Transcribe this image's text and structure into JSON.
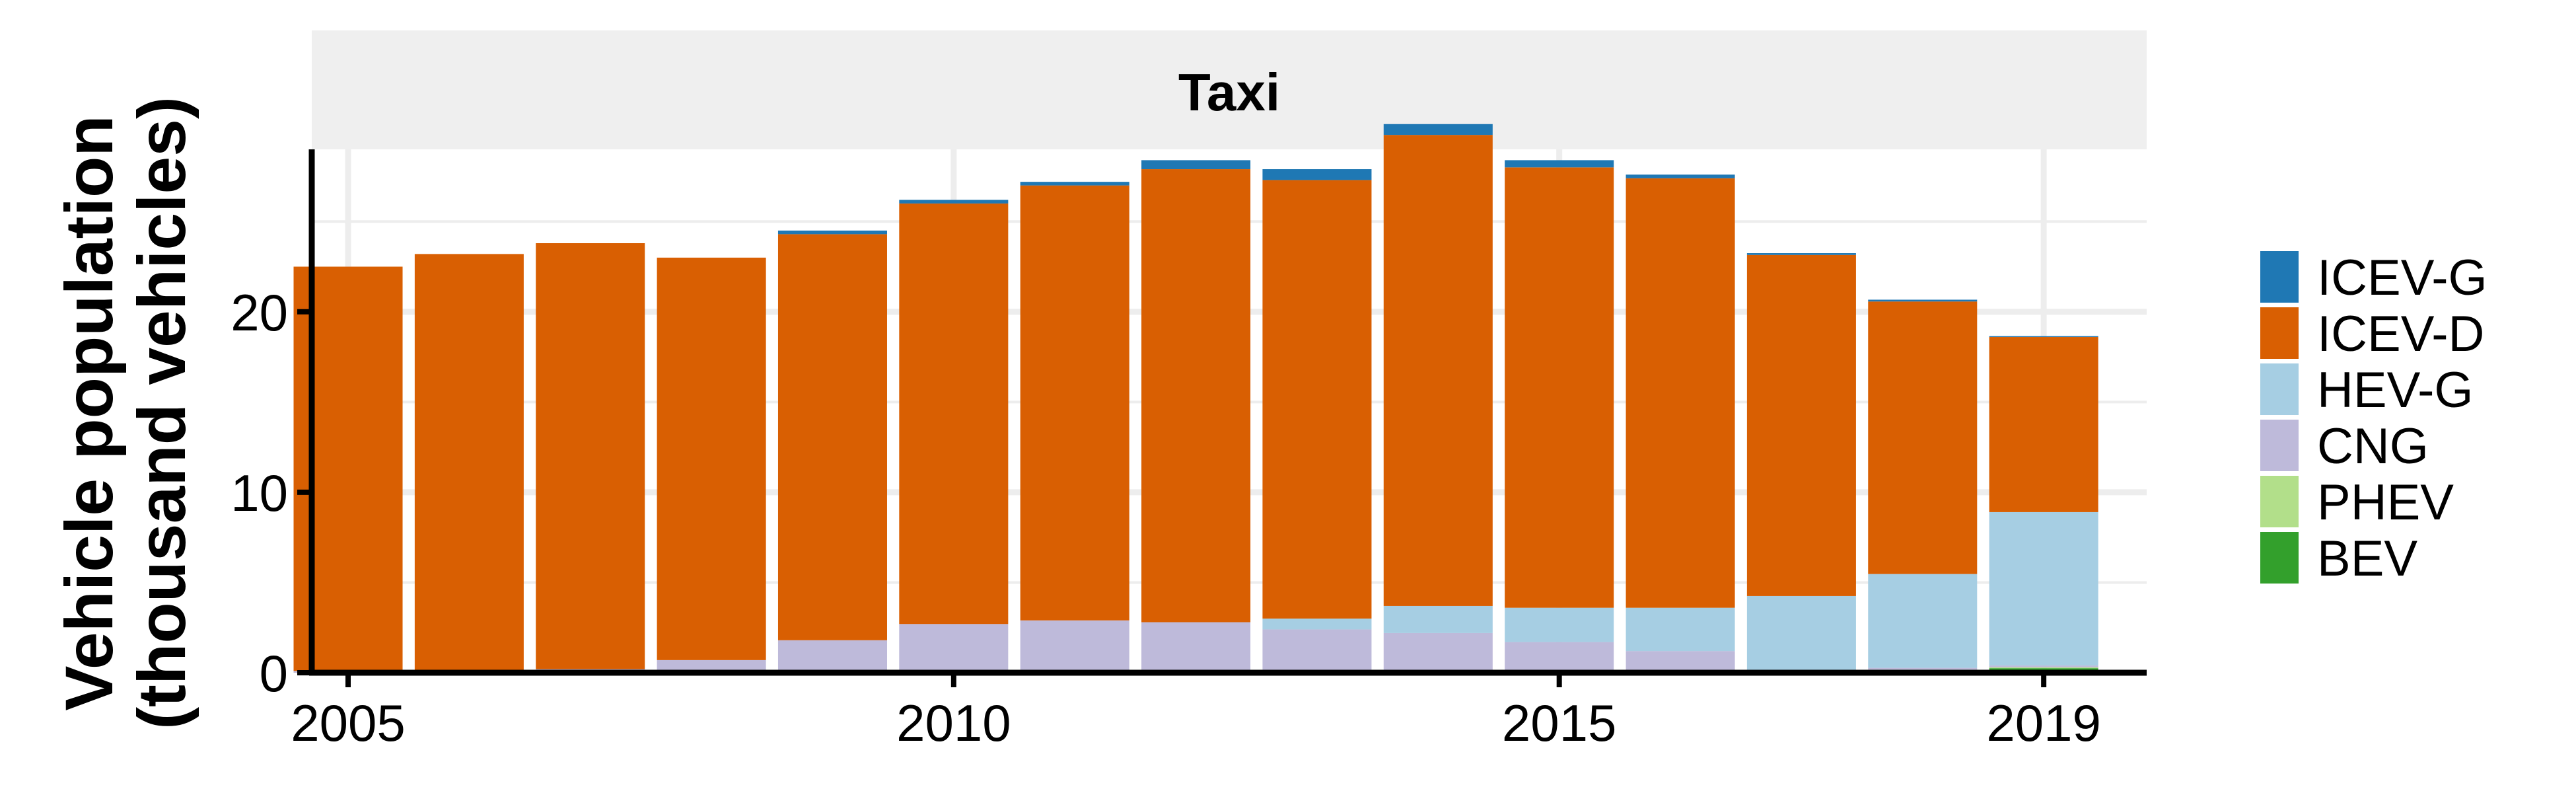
{
  "chart_data": {
    "type": "bar",
    "stacked": true,
    "panel_title": "Taxi",
    "title": "",
    "xlabel": "",
    "ylabel_line1": "Vehicle population",
    "ylabel_line2": "(thousand vehicles)",
    "ylim": [
      0,
      29
    ],
    "yticks": [
      0,
      10,
      20
    ],
    "xticks": [
      2005,
      2010,
      2015,
      2019
    ],
    "grid": true,
    "legend_position": "right",
    "categories": [
      2005,
      2006,
      2007,
      2008,
      2009,
      2010,
      2011,
      2012,
      2013,
      2014,
      2015,
      2016,
      2017,
      2018,
      2019
    ],
    "series": [
      {
        "name": "BEV",
        "color": "#33a02c",
        "values": [
          0,
          0,
          0,
          0,
          0,
          0,
          0,
          0,
          0,
          0,
          0,
          0,
          0,
          0.12,
          0.25
        ]
      },
      {
        "name": "PHEV",
        "color": "#b2df8a",
        "values": [
          0,
          0,
          0,
          0,
          0,
          0,
          0,
          0,
          0,
          0,
          0,
          0,
          0.05,
          0.05,
          0.05
        ]
      },
      {
        "name": "CNG",
        "color": "#bebada",
        "values": [
          0.1,
          0.1,
          0.2,
          0.7,
          1.8,
          2.7,
          2.9,
          2.8,
          2.4,
          2.2,
          1.7,
          1.2,
          0.1,
          0.1,
          0.1
        ]
      },
      {
        "name": "HEV-G",
        "color": "#a6cee3",
        "values": [
          0,
          0,
          0,
          0,
          0,
          0,
          0,
          0,
          0.6,
          1.5,
          1.9,
          2.4,
          4.1,
          5.2,
          8.5
        ]
      },
      {
        "name": "ICEV-D",
        "color": "#d95f02",
        "values": [
          22.4,
          23.1,
          23.6,
          22.3,
          22.5,
          23.3,
          24.1,
          25.1,
          24.3,
          26.1,
          24.4,
          23.8,
          18.9,
          15.1,
          9.7
        ]
      },
      {
        "name": "ICEV-G",
        "color": "#1f78b4",
        "values": [
          0,
          0,
          0,
          0,
          0.2,
          0.2,
          0.2,
          0.5,
          0.6,
          0.6,
          0.4,
          0.2,
          0.1,
          0.1,
          0.05
        ]
      }
    ],
    "legend_order": [
      "ICEV-G",
      "ICEV-D",
      "HEV-G",
      "CNG",
      "PHEV",
      "BEV"
    ],
    "colors": {
      "panel_bg": "#ffffff",
      "strip_bg": "#efefef",
      "grid": "#ededed",
      "axis": "#000000"
    }
  }
}
